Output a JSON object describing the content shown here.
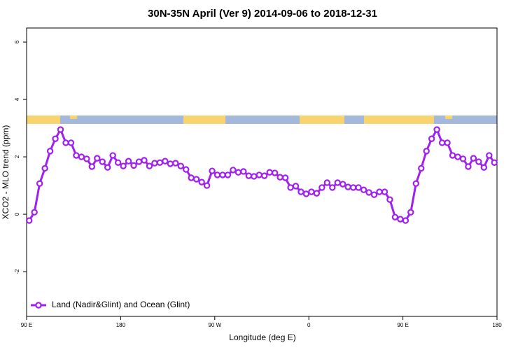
{
  "chart_data": {
    "type": "line",
    "title": "30N-35N April (Ver 9)   2014-09-06 to 2018-12-31",
    "x_label": "Longitude (deg E)",
    "y_label": "XCO2 - MLO trend (ppm)",
    "x": [
      92.5,
      97.5,
      102.5,
      107.5,
      112.5,
      117.5,
      122.5,
      127.5,
      132.5,
      137.5,
      142.5,
      147.5,
      152.5,
      157.5,
      162.5,
      167.5,
      172.5,
      177.5,
      182.5,
      187.5,
      192.5,
      197.5,
      202.5,
      207.5,
      212.5,
      217.5,
      222.5,
      227.5,
      232.5,
      237.5,
      242.5,
      247.5,
      252.5,
      257.5,
      262.5,
      267.5,
      272.5,
      277.5,
      282.5,
      287.5,
      292.5,
      297.5,
      302.5,
      307.5,
      312.5,
      317.5,
      322.5,
      327.5,
      332.5,
      337.5,
      342.5,
      347.5,
      352.5,
      357.5,
      362.5,
      367.5,
      372.5,
      377.5,
      382.5,
      387.5,
      392.5,
      397.5,
      402.5,
      407.5,
      412.5,
      417.5,
      422.5,
      427.5,
      432.5,
      437.5,
      442.5,
      447.5,
      452.5,
      457.5,
      462.5,
      467.5,
      472.5,
      477.5,
      482.5,
      487.5,
      492.5,
      497.5,
      502.5,
      507.5,
      512.5,
      517.5,
      522.5,
      527.5,
      532.5,
      537.5
    ],
    "series": [
      {
        "name": "Land (Nadir&Glint) and Ocean (Glint)",
        "color": "#a020f0",
        "values": [
          -0.22,
          0.07,
          1.07,
          1.6,
          2.2,
          2.63,
          2.95,
          2.49,
          2.49,
          2.05,
          2.0,
          1.93,
          1.66,
          1.95,
          1.83,
          1.63,
          2.05,
          1.8,
          1.68,
          1.85,
          1.7,
          1.83,
          1.88,
          1.68,
          1.78,
          1.8,
          1.85,
          1.76,
          1.78,
          1.68,
          1.56,
          1.27,
          1.22,
          1.12,
          1.0,
          1.51,
          1.37,
          1.37,
          1.37,
          1.54,
          1.46,
          1.49,
          1.34,
          1.32,
          1.37,
          1.34,
          1.46,
          1.44,
          1.29,
          1.27,
          0.93,
          0.98,
          0.78,
          0.71,
          0.78,
          0.73,
          0.93,
          1.1,
          0.93,
          1.1,
          1.05,
          0.95,
          0.93,
          0.93,
          0.85,
          0.76,
          0.68,
          0.78,
          0.78,
          0.51,
          -0.1,
          -0.17,
          -0.22,
          0.07,
          1.07,
          1.6,
          2.2,
          2.63,
          2.95,
          2.49,
          2.49,
          2.05,
          2.0,
          1.93,
          1.66,
          1.95,
          1.83,
          1.63,
          2.05,
          1.8
        ]
      }
    ],
    "xlim": [
      90,
      540
    ],
    "xticks": [
      {
        "value": 90,
        "label": "90 E"
      },
      180,
      {
        "value": 270,
        "label": "90 W"
      },
      {
        "value": 360,
        "label": "0"
      },
      {
        "value": 450,
        "label": "90 E"
      },
      {
        "value": 540,
        "label": "180"
      }
    ],
    "ylim": [
      -3.56,
      6.49
    ],
    "yticks": [
      -2,
      0,
      2,
      4,
      6
    ],
    "legend": "bottom left"
  }
}
